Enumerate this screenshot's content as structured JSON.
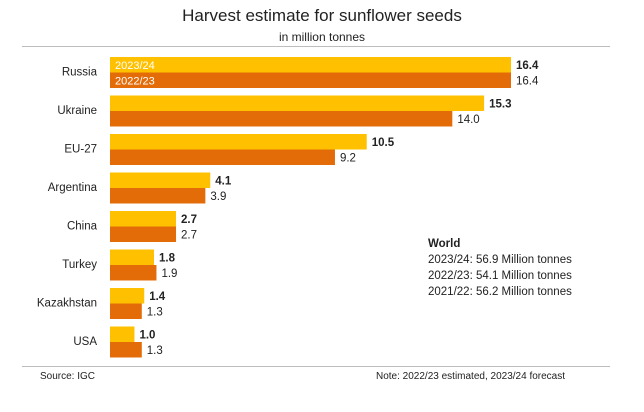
{
  "chart_data": {
    "type": "bar",
    "orientation": "horizontal",
    "title": "Harvest estimate for sunflower seeds",
    "subtitle": "in million tonnes",
    "categories": [
      "Russia",
      "Ukraine",
      "EU-27",
      "Argentina",
      "China",
      "Turkey",
      "Kazakhstan",
      "USA"
    ],
    "series": [
      {
        "name": "2023/24",
        "color": "#ffc000",
        "values": [
          16.4,
          15.3,
          10.5,
          4.1,
          2.7,
          1.8,
          1.4,
          1.0
        ]
      },
      {
        "name": "2022/23",
        "color": "#e36c09",
        "values": [
          16.4,
          14.0,
          9.2,
          3.9,
          2.7,
          1.9,
          1.3,
          1.3
        ]
      }
    ],
    "xlim": [
      0,
      16.4
    ],
    "grid": false,
    "legend": "inside first bar"
  },
  "world": {
    "heading": "World",
    "lines": [
      "2023/24: 56.9 Million tonnes",
      "2022/23: 54.1 Million tonnes",
      "2021/22: 56.2 Million tonnes"
    ]
  },
  "footer": {
    "source": "Source:  IGC",
    "note": "Note: 2022/23 estimated, 2023/24 forecast"
  }
}
